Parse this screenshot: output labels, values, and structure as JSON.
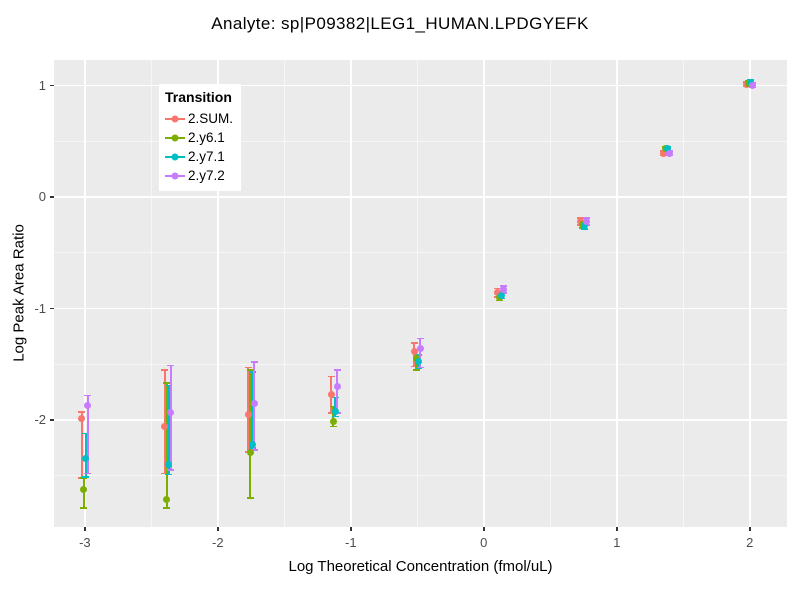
{
  "title": "Analyte: sp|P09382|LEG1_HUMAN.LPDGYEFK",
  "colors": {
    "panel_bg": "#EBEBEB",
    "grid_major": "#FFFFFF",
    "grid_minor": "#F6F6F6",
    "tick": "#333333",
    "tick_label": "#4D4D4D",
    "text": "#000000",
    "legend_bg": "#FFFFFF"
  },
  "chart_data": {
    "type": "scatter",
    "title": "Analyte: sp|P09382|LEG1_HUMAN.LPDGYEFK",
    "xlabel": "Log Theoretical Concentration (fmol/uL)",
    "ylabel": "Log Peak Area Ratio",
    "xlim": [
      -3.232,
      2.28
    ],
    "ylim": [
      -2.96,
      1.228
    ],
    "x_ticks": [
      -3,
      -2,
      -1,
      0,
      1,
      2
    ],
    "x_tick_labels": [
      "-3",
      "-2",
      "-1",
      "0",
      "1",
      "2"
    ],
    "y_ticks": [
      1,
      0,
      -1,
      -2
    ],
    "y_tick_labels": [
      "1",
      "0",
      "-1",
      "-2"
    ],
    "x_minor": [
      -2.5,
      -1.5,
      -0.5,
      0.5,
      1.5
    ],
    "y_minor": [
      0.5,
      -0.5,
      -1.5,
      -2.5
    ],
    "grid": true,
    "legend": {
      "title": "Transition",
      "position": "top-left-inside"
    },
    "x": [
      -3,
      -2.375,
      -1.75,
      -1.125,
      -0.5,
      0.125,
      0.75,
      1.375,
      2
    ],
    "series": [
      {
        "name": "2.SUM.",
        "color": "#F8766D",
        "y": [
          -1.99,
          -2.06,
          -1.95,
          -1.77,
          -1.39,
          -0.86,
          -0.22,
          0.39,
          1.01
        ],
        "ymin": [
          -2.52,
          -2.48,
          -2.29,
          -1.94,
          -1.52,
          -0.9,
          -0.25,
          0.37,
          0.99
        ],
        "ymax": [
          -1.93,
          -1.55,
          -1.53,
          -1.61,
          -1.31,
          -0.82,
          -0.19,
          0.41,
          1.03
        ]
      },
      {
        "name": "2.y6.1",
        "color": "#7CAE00",
        "y": [
          -2.62,
          -2.71,
          -2.29,
          -2.01,
          -1.45,
          -0.9,
          -0.25,
          0.43,
          1.02
        ],
        "ymin": [
          -2.79,
          -2.79,
          -2.7,
          -2.06,
          -1.55,
          -0.93,
          -0.28,
          0.41,
          1.0
        ],
        "ymax": [
          -2.52,
          -1.67,
          -1.55,
          -1.88,
          -1.37,
          -0.87,
          -0.22,
          0.45,
          1.04
        ]
      },
      {
        "name": "2.y7.1",
        "color": "#00BFC4",
        "y": [
          -2.35,
          -2.4,
          -2.22,
          -1.92,
          -1.48,
          -0.88,
          -0.26,
          0.43,
          1.03
        ],
        "ymin": [
          -2.51,
          -2.49,
          -2.25,
          -1.97,
          -1.54,
          -0.91,
          -0.29,
          0.41,
          1.01
        ],
        "ymax": [
          -2.12,
          -1.69,
          -1.57,
          -1.8,
          -1.42,
          -0.85,
          -0.23,
          0.45,
          1.05
        ]
      },
      {
        "name": "2.y7.2",
        "color": "#C77CFF",
        "y": [
          -1.87,
          -1.93,
          -1.85,
          -1.7,
          -1.36,
          -0.83,
          -0.22,
          0.39,
          1.0
        ],
        "ymin": [
          -2.48,
          -2.45,
          -2.27,
          -1.94,
          -1.53,
          -0.86,
          -0.25,
          0.37,
          0.98
        ],
        "ymax": [
          -1.78,
          -1.51,
          -1.48,
          -1.55,
          -1.27,
          -0.8,
          -0.19,
          0.41,
          1.02
        ]
      }
    ]
  }
}
